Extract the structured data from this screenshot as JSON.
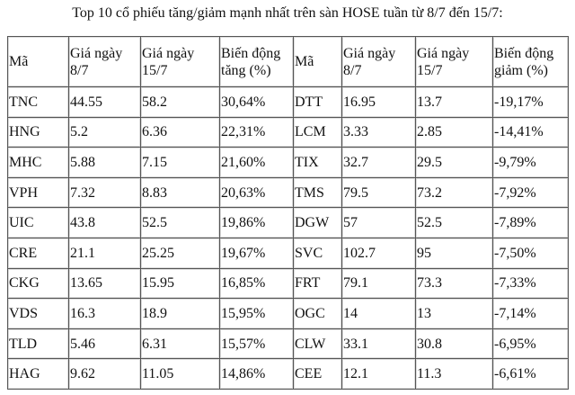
{
  "title": "Top 10 cổ phiếu tăng/giảm mạnh nhất trên sàn HOSE tuần từ 8/7 đến 15/7:",
  "headers": [
    "Mã",
    "Giá ngày 8/7",
    "Giá ngày 15/7",
    "Biến động tăng (%)",
    "Mã",
    "Giá ngày 8/7",
    "Giá ngày 15/7",
    "Biến động giảm (%)"
  ],
  "rows": [
    [
      "TNC",
      "44.55",
      "58.2",
      "30,64%",
      "DTT",
      "16.95",
      "13.7",
      "-19,17%"
    ],
    [
      "HNG",
      "5.2",
      "6.36",
      "22,31%",
      "LCM",
      "3.33",
      "2.85",
      "-14,41%"
    ],
    [
      "MHC",
      "5.88",
      "7.15",
      "21,60%",
      "TIX",
      "32.7",
      "29.5",
      "-9,79%"
    ],
    [
      "VPH",
      "7.32",
      "8.83",
      "20,63%",
      "TMS",
      "79.5",
      "73.2",
      "-7,92%"
    ],
    [
      "UIC",
      "43.8",
      "52.5",
      "19,86%",
      "DGW",
      "57",
      "52.5",
      "-7,89%"
    ],
    [
      "CRE",
      "21.1",
      "25.25",
      "19,67%",
      "SVC",
      "102.7",
      "95",
      "-7,50%"
    ],
    [
      "CKG",
      "13.65",
      "15.95",
      "16,85%",
      "FRT",
      "79.1",
      "73.3",
      "-7,33%"
    ],
    [
      "VDS",
      "16.3",
      "18.9",
      "15,95%",
      "OGC",
      "14",
      "13",
      "-7,14%"
    ],
    [
      "TLD",
      "5.46",
      "6.31",
      "15,57%",
      "CLW",
      "33.1",
      "30.8",
      "-6,95%"
    ],
    [
      "HAG",
      "9.62",
      "11.05",
      "14,86%",
      "CEE",
      "12.1",
      "11.3",
      "-6,61%"
    ]
  ]
}
